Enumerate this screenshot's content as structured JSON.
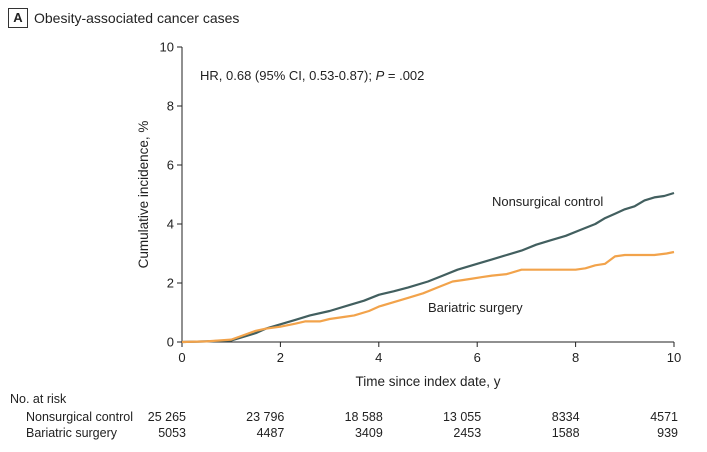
{
  "panel": {
    "letter": "A",
    "title": "Obesity-associated cancer cases"
  },
  "colors": {
    "nonsurgical": "#425f5f",
    "bariatric": "#f2a34b",
    "axis": "#222222"
  },
  "chart_data": {
    "type": "line",
    "title": "Obesity-associated cancer cases",
    "xlabel": "Time since index date, y",
    "ylabel": "Cumulative incidence, %",
    "xlim": [
      0,
      10
    ],
    "ylim": [
      0,
      10
    ],
    "xticks": [
      0,
      2,
      4,
      6,
      8,
      10
    ],
    "yticks": [
      0,
      2,
      4,
      6,
      8,
      10
    ],
    "annotation": {
      "prefix": "HR, 0.68 (95% CI, 0.53-0.87); ",
      "p_label": "P",
      "suffix": " = .002"
    },
    "series": [
      {
        "name": "Nonsurgical control",
        "label_text": "Nonsurgical control",
        "label_at": [
          6.3,
          4.75
        ],
        "x": [
          0,
          0.5,
          1.0,
          1.2,
          1.5,
          1.7,
          2.0,
          2.3,
          2.6,
          3.0,
          3.4,
          3.7,
          4.0,
          4.3,
          4.6,
          5.0,
          5.3,
          5.6,
          6.0,
          6.3,
          6.6,
          6.9,
          7.2,
          7.5,
          7.8,
          8.1,
          8.4,
          8.6,
          8.8,
          9.0,
          9.2,
          9.4,
          9.6,
          9.8,
          10.0
        ],
        "y": [
          0,
          0.02,
          0.05,
          0.15,
          0.3,
          0.45,
          0.6,
          0.75,
          0.9,
          1.05,
          1.25,
          1.4,
          1.6,
          1.72,
          1.85,
          2.05,
          2.25,
          2.45,
          2.65,
          2.8,
          2.95,
          3.1,
          3.3,
          3.45,
          3.6,
          3.8,
          4.0,
          4.2,
          4.35,
          4.5,
          4.6,
          4.8,
          4.9,
          4.95,
          5.05
        ]
      },
      {
        "name": "Bariatric surgery",
        "label_text": "Bariatric surgery",
        "label_at": [
          5.0,
          1.15
        ],
        "x": [
          0,
          0.5,
          1.0,
          1.2,
          1.5,
          1.7,
          2.0,
          2.3,
          2.5,
          2.8,
          3.0,
          3.3,
          3.5,
          3.8,
          4.0,
          4.3,
          4.6,
          4.9,
          5.2,
          5.5,
          5.7,
          5.9,
          6.1,
          6.3,
          6.6,
          6.9,
          7.2,
          7.5,
          7.8,
          8.0,
          8.2,
          8.4,
          8.6,
          8.8,
          9.0,
          9.3,
          9.6,
          9.85,
          10.0
        ],
        "y": [
          0,
          0.02,
          0.08,
          0.2,
          0.38,
          0.45,
          0.52,
          0.62,
          0.7,
          0.7,
          0.78,
          0.85,
          0.9,
          1.05,
          1.2,
          1.35,
          1.5,
          1.65,
          1.85,
          2.05,
          2.1,
          2.15,
          2.2,
          2.25,
          2.3,
          2.45,
          2.45,
          2.45,
          2.45,
          2.45,
          2.5,
          2.6,
          2.65,
          2.9,
          2.95,
          2.95,
          2.95,
          3.0,
          3.05
        ]
      }
    ]
  },
  "risk_table": {
    "heading": "No. at risk",
    "rows": [
      {
        "label": "Nonsurgical control",
        "values": [
          "25 265",
          "23 796",
          "18 588",
          "13 055",
          "8334",
          "4571"
        ]
      },
      {
        "label": "Bariatric surgery",
        "values": [
          "5053",
          "4487",
          "3409",
          "2453",
          "1588",
          "939"
        ]
      }
    ]
  }
}
